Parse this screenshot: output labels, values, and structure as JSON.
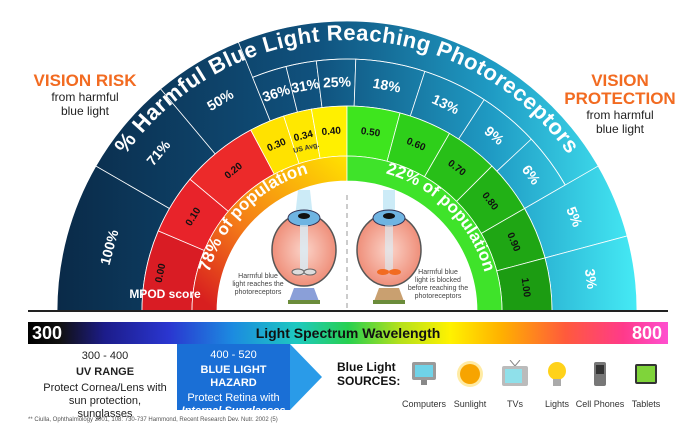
{
  "title": "% Harmful Blue Light Reaching Photoreceptors",
  "left_panel": {
    "heading": "VISION RISK",
    "sub": "from harmful blue light"
  },
  "right_panel": {
    "heading": "VISION PROTECTION",
    "sub": "from harmful blue light"
  },
  "percent_left": [
    "100%",
    "71%",
    "50%",
    "36%",
    "31%",
    "25%"
  ],
  "percent_right": [
    "18%",
    "13%",
    "9%",
    "6%",
    "5%",
    "3%"
  ],
  "mpod_left": [
    "0.00",
    "0.10",
    "0.20",
    "0.30",
    "0.34",
    "0.40"
  ],
  "mpod_right": [
    "0.50",
    "0.60",
    "0.70",
    "0.80",
    "0.90",
    "1.00"
  ],
  "us_avg_label": "US Avg.",
  "mpod_label": "MPOD score",
  "population_left": "78% of population",
  "population_right": "22% of population",
  "eye_left_caption": "Harmful blue light reaches the photoreceptors",
  "eye_right_caption": "Harmful blue light is blocked before reaching the photoreceptors",
  "spectrum": {
    "start": "300",
    "end": "800",
    "label": "Light Spectrum Wavelength"
  },
  "uv": {
    "range": "300 - 400",
    "title": "UV RANGE",
    "text": "Protect Cornea/Lens with sun protection, sunglasses"
  },
  "hazard": {
    "range": "400 - 520",
    "title": "BLUE LIGHT HAZARD",
    "text": "Protect Retina with",
    "emph": "Internal Sunglasses"
  },
  "sources_label": "Blue Light SOURCES:",
  "sources": [
    {
      "label": "Computers",
      "icon": "computer-icon"
    },
    {
      "label": "Sunlight",
      "icon": "sun-icon"
    },
    {
      "label": "TVs",
      "icon": "tv-icon"
    },
    {
      "label": "Lights",
      "icon": "lightbulb-icon"
    },
    {
      "label": "Cell Phones",
      "icon": "phone-icon"
    },
    {
      "label": "Tablets",
      "icon": "tablet-icon"
    }
  ],
  "footnote": "** Ciulla, Ophthalmology 2001, 108: 730-737   Hammond, Recent Research Dev. Nutr. 2002 (5)",
  "colors": {
    "navy": "#0c3556",
    "cyan": "#3fe3f2",
    "red": "#e8232a",
    "yellow": "#ffee00",
    "green": "#22b81a",
    "orange": "#f26b21"
  }
}
